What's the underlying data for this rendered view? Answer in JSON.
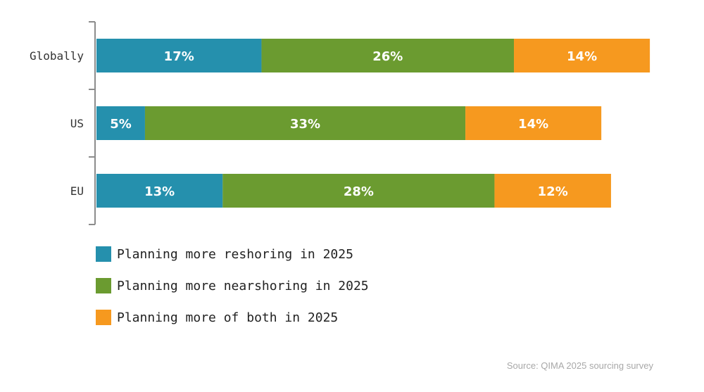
{
  "chart_data": {
    "type": "bar",
    "orientation": "horizontal",
    "stacked": true,
    "categories": [
      "Globally",
      "US",
      "EU"
    ],
    "series": [
      {
        "name": "Planning more reshoring in 2025",
        "color": "#2590ad",
        "values": [
          17,
          5,
          13
        ],
        "labels": [
          "17%",
          "5%",
          "13%"
        ]
      },
      {
        "name": "Planning more nearshoring in 2025",
        "color": "#6b9b30",
        "values": [
          26,
          33,
          28
        ],
        "labels": [
          "26%",
          "33%",
          "28%"
        ]
      },
      {
        "name": "Planning more of both in 2025",
        "color": "#f6991f",
        "values": [
          14,
          14,
          12
        ],
        "labels": [
          "14%",
          "14%",
          "12%"
        ]
      }
    ],
    "xlim": [
      0,
      57.5
    ],
    "grid": false,
    "legend_position": "bottom-left"
  },
  "source": "Source: QIMA 2025 sourcing survey"
}
